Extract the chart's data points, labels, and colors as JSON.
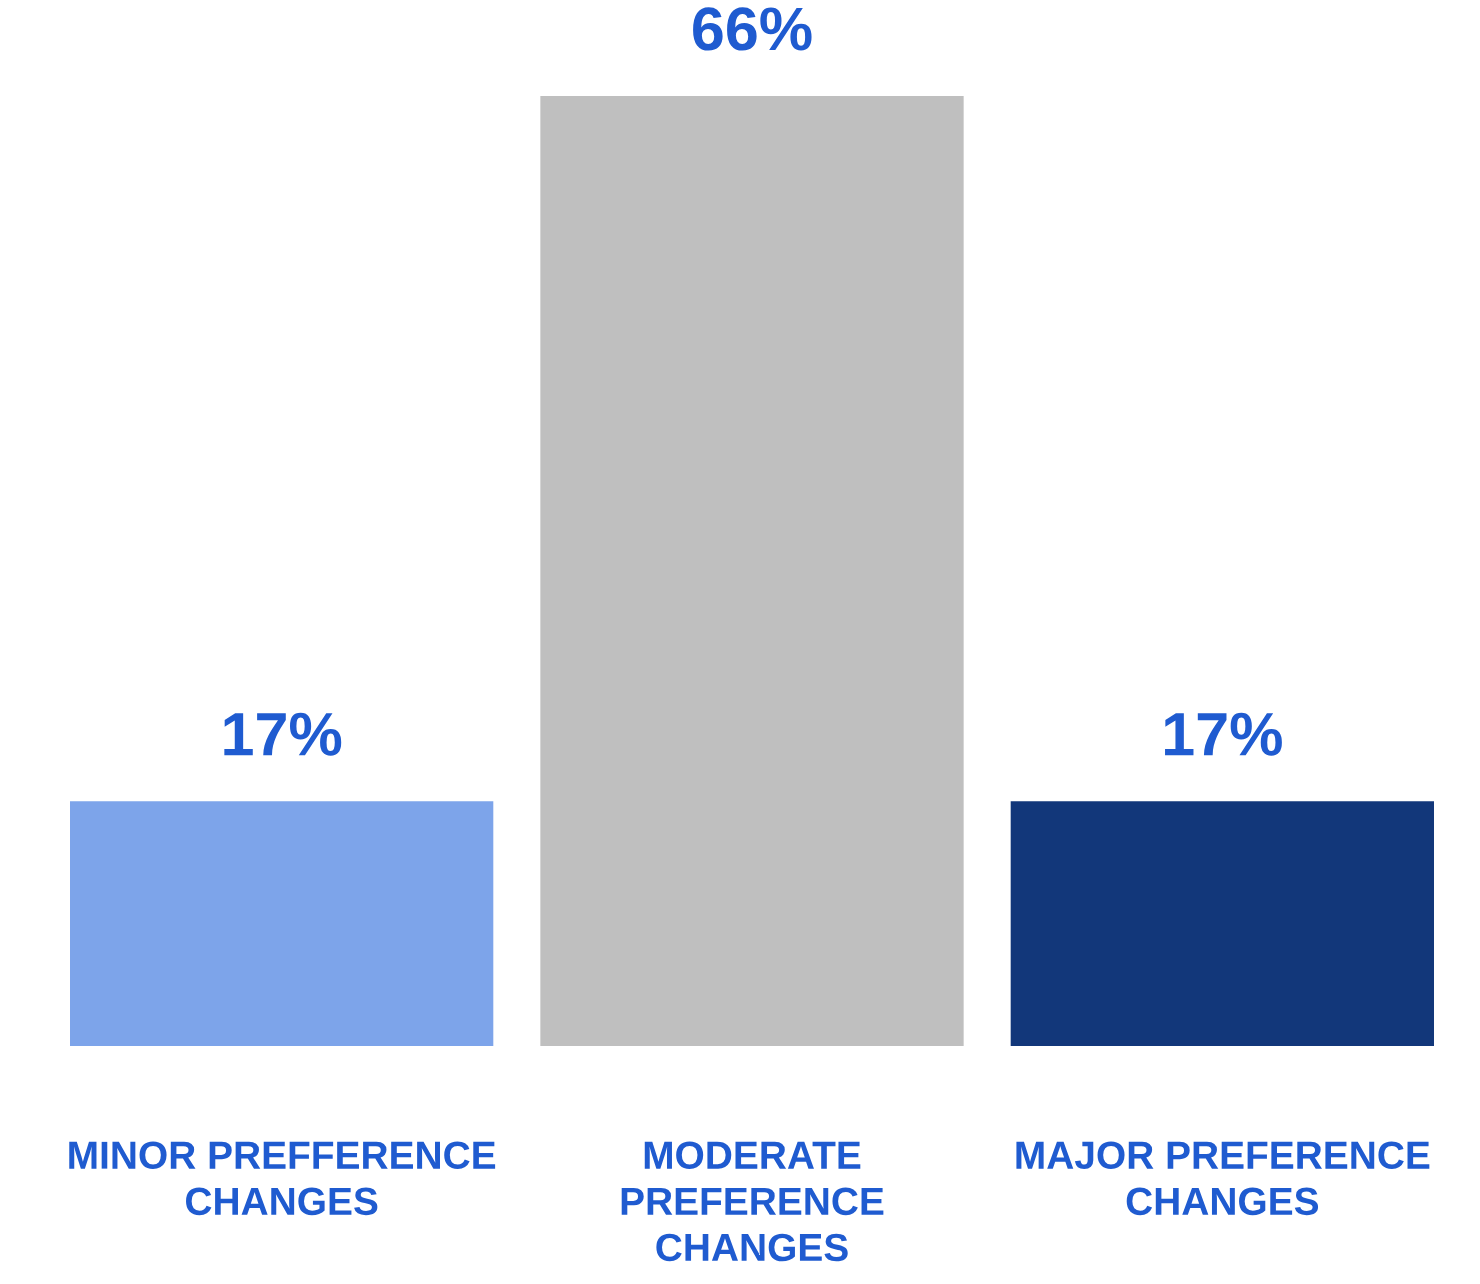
{
  "chart_data": {
    "type": "bar",
    "categories": [
      "MINOR PREFFERENCE\nCHANGES",
      "MODERATE\nPREFERENCE\nCHANGES",
      "MAJOR PREFERENCE\nCHANGES"
    ],
    "values": [
      17,
      66,
      17
    ],
    "colors": [
      "#7da4ea",
      "#bfbfbf",
      "#12377a"
    ],
    "data_labels": true,
    "value_labels": [
      "17%",
      "66%",
      "17%"
    ],
    "grid": false,
    "legend": false,
    "tick_labels": "x"
  }
}
